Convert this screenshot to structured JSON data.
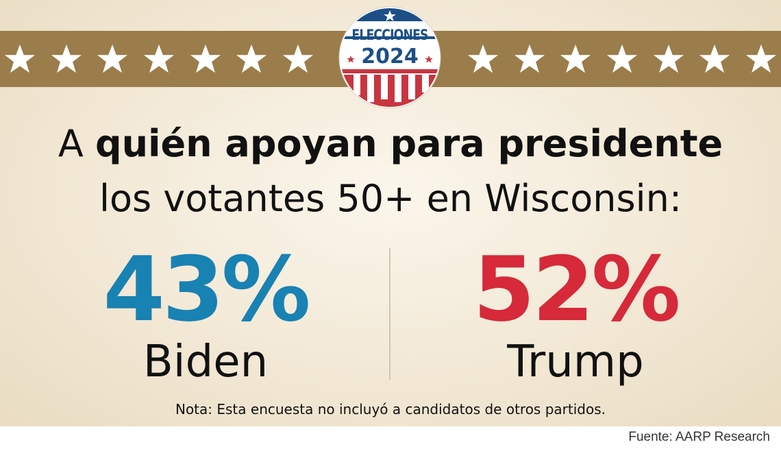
{
  "badge": {
    "label": "ELECCIONES",
    "year": "2024"
  },
  "headline": {
    "prefix": "A ",
    "bold": "quién apoyan para presidente",
    "line2": "los votantes 50+ en Wisconsin:"
  },
  "results": [
    {
      "percent": "43%",
      "candidate": "Biden",
      "color": "#1882b3",
      "value": 43
    },
    {
      "percent": "52%",
      "candidate": "Trump",
      "color": "#d6293a",
      "value": 52
    }
  ],
  "note": "Nota: Esta encuesta no incluyó a candidatos de otros partidos.",
  "source": "Fuente: AARP Research",
  "colors": {
    "band": "#9a7d4a",
    "blue": "#1882b3",
    "red": "#d6293a"
  }
}
